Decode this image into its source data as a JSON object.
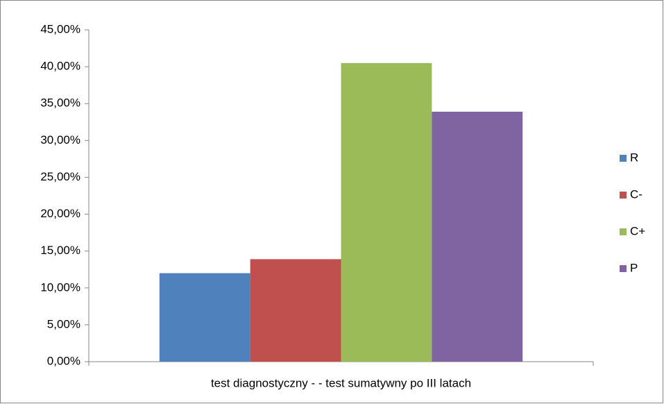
{
  "chart_data": {
    "type": "bar",
    "categories": [
      "test diagnostyczny - - test sumatywny po III latach"
    ],
    "series": [
      {
        "name": "R",
        "color": "#4f81bd",
        "values": [
          12.0
        ]
      },
      {
        "name": "C-",
        "color": "#c0504d",
        "values": [
          13.9
        ]
      },
      {
        "name": "C+",
        "color": "#9bbb59",
        "values": [
          40.5
        ]
      },
      {
        "name": "P",
        "color": "#8064a2",
        "values": [
          33.9
        ]
      }
    ],
    "ylim": [
      0,
      45
    ],
    "yticks": [
      {
        "value": 0,
        "label": "0,00%"
      },
      {
        "value": 5,
        "label": "5,00%"
      },
      {
        "value": 10,
        "label": "10,00%"
      },
      {
        "value": 15,
        "label": "15,00%"
      },
      {
        "value": 20,
        "label": "20,00%"
      },
      {
        "value": 25,
        "label": "25,00%"
      },
      {
        "value": 30,
        "label": "30,00%"
      },
      {
        "value": 35,
        "label": "35,00%"
      },
      {
        "value": 40,
        "label": "40,00%"
      },
      {
        "value": 45,
        "label": "45,00%"
      }
    ],
    "grid": false,
    "legend": "right"
  }
}
